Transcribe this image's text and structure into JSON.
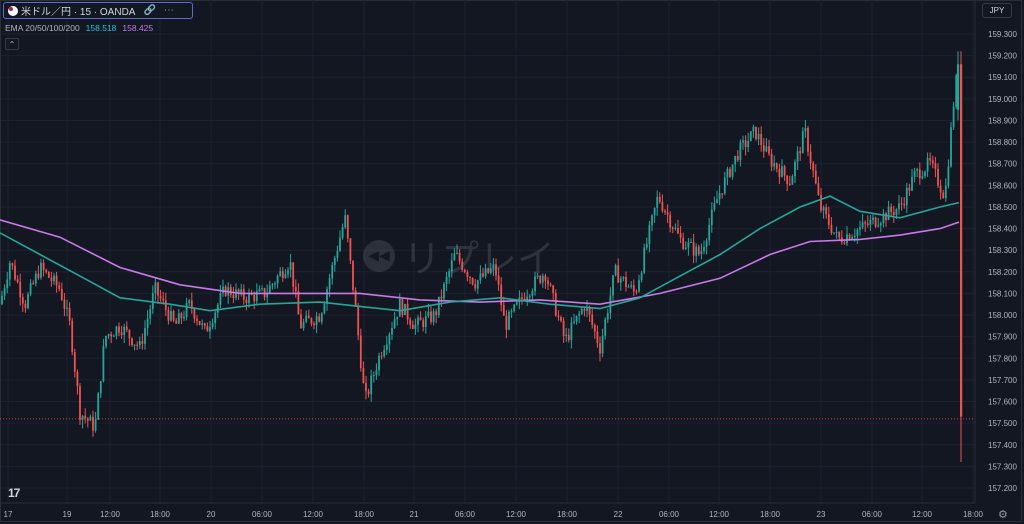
{
  "header": {
    "symbol_title": "米ドル／円 · 15 · OANDA",
    "link_icon": "link-icon",
    "more_icon": "more-icon",
    "currency": "JPY"
  },
  "indicator": {
    "name": "EMA 20/50/100/200",
    "value1": "158.518",
    "value2": "158.425",
    "collapse_icon": "chevron-up-icon"
  },
  "watermark": {
    "text": "リプレイ",
    "icon": "replay-icon"
  },
  "colors": {
    "bg": "#131722",
    "up": "#26a69a",
    "down": "#ef5350",
    "ema_fast": "#26a69a",
    "ema_slow": "#c979e8",
    "grid": "#1e222d"
  },
  "chart_data": {
    "type": "candlestick",
    "title": "米ドル／円 · 15 · OANDA",
    "ylim": [
      157.15,
      159.35
    ],
    "y_ticks": [
      "159.300",
      "159.200",
      "159.100",
      "159.000",
      "158.900",
      "158.800",
      "158.700",
      "158.600",
      "158.500",
      "158.400",
      "158.300",
      "158.200",
      "158.100",
      "158.000",
      "157.900",
      "157.800",
      "157.700",
      "157.600",
      "157.500",
      "157.400",
      "157.300",
      "157.200"
    ],
    "x_ticks": [
      "17",
      "19",
      "12:00",
      "18:00",
      "20",
      "06:00",
      "12:00",
      "18:00",
      "21",
      "06:00",
      "12:00",
      "18:00",
      "22",
      "06:00",
      "12:00",
      "18:00",
      "23",
      "06:00",
      "12:00",
      "18:00"
    ],
    "last_price_line": 157.52,
    "close_path": [
      [
        0,
        158.05
      ],
      [
        10,
        158.25
      ],
      [
        25,
        158.05
      ],
      [
        40,
        158.22
      ],
      [
        60,
        158.12
      ],
      [
        70,
        157.95
      ],
      [
        80,
        157.55
      ],
      [
        95,
        157.48
      ],
      [
        105,
        157.9
      ],
      [
        120,
        157.95
      ],
      [
        140,
        157.85
      ],
      [
        155,
        158.12
      ],
      [
        175,
        157.95
      ],
      [
        190,
        158.05
      ],
      [
        205,
        157.92
      ],
      [
        225,
        158.12
      ],
      [
        245,
        158.08
      ],
      [
        265,
        158.1
      ],
      [
        290,
        158.25
      ],
      [
        300,
        157.95
      ],
      [
        320,
        158.0
      ],
      [
        345,
        158.45
      ],
      [
        355,
        158.05
      ],
      [
        365,
        157.6
      ],
      [
        380,
        157.82
      ],
      [
        400,
        158.05
      ],
      [
        415,
        157.95
      ],
      [
        435,
        158.0
      ],
      [
        455,
        158.28
      ],
      [
        475,
        158.15
      ],
      [
        495,
        158.22
      ],
      [
        505,
        157.95
      ],
      [
        525,
        158.1
      ],
      [
        545,
        158.2
      ],
      [
        565,
        157.88
      ],
      [
        585,
        158.05
      ],
      [
        600,
        157.85
      ],
      [
        615,
        158.2
      ],
      [
        635,
        158.1
      ],
      [
        658,
        158.55
      ],
      [
        680,
        158.35
      ],
      [
        700,
        158.28
      ],
      [
        718,
        158.55
      ],
      [
        738,
        158.75
      ],
      [
        755,
        158.85
      ],
      [
        770,
        158.72
      ],
      [
        790,
        158.62
      ],
      [
        805,
        158.85
      ],
      [
        820,
        158.5
      ],
      [
        838,
        158.35
      ],
      [
        860,
        158.4
      ],
      [
        880,
        158.45
      ],
      [
        900,
        158.5
      ],
      [
        915,
        158.65
      ],
      [
        930,
        158.7
      ],
      [
        945,
        158.55
      ],
      [
        955,
        159.05
      ],
      [
        959,
        159.15
      ],
      [
        961,
        157.55
      ]
    ],
    "ema_fast": [
      [
        0,
        158.38
      ],
      [
        40,
        158.28
      ],
      [
        80,
        158.18
      ],
      [
        120,
        158.08
      ],
      [
        170,
        158.05
      ],
      [
        210,
        158.02
      ],
      [
        260,
        158.05
      ],
      [
        320,
        158.06
      ],
      [
        360,
        158.04
      ],
      [
        400,
        158.02
      ],
      [
        450,
        158.06
      ],
      [
        500,
        158.08
      ],
      [
        550,
        158.05
      ],
      [
        600,
        158.03
      ],
      [
        640,
        158.08
      ],
      [
        680,
        158.18
      ],
      [
        720,
        158.28
      ],
      [
        760,
        158.4
      ],
      [
        800,
        158.5
      ],
      [
        830,
        158.55
      ],
      [
        860,
        158.48
      ],
      [
        900,
        158.45
      ],
      [
        940,
        158.5
      ],
      [
        959,
        158.52
      ]
    ],
    "ema_slow": [
      [
        0,
        158.44
      ],
      [
        60,
        158.36
      ],
      [
        120,
        158.22
      ],
      [
        180,
        158.14
      ],
      [
        240,
        158.1
      ],
      [
        300,
        158.1
      ],
      [
        360,
        158.1
      ],
      [
        420,
        158.07
      ],
      [
        480,
        158.06
      ],
      [
        540,
        158.07
      ],
      [
        600,
        158.05
      ],
      [
        660,
        158.1
      ],
      [
        720,
        158.17
      ],
      [
        770,
        158.28
      ],
      [
        810,
        158.34
      ],
      [
        860,
        158.35
      ],
      [
        900,
        158.37
      ],
      [
        940,
        158.4
      ],
      [
        959,
        158.43
      ]
    ]
  }
}
